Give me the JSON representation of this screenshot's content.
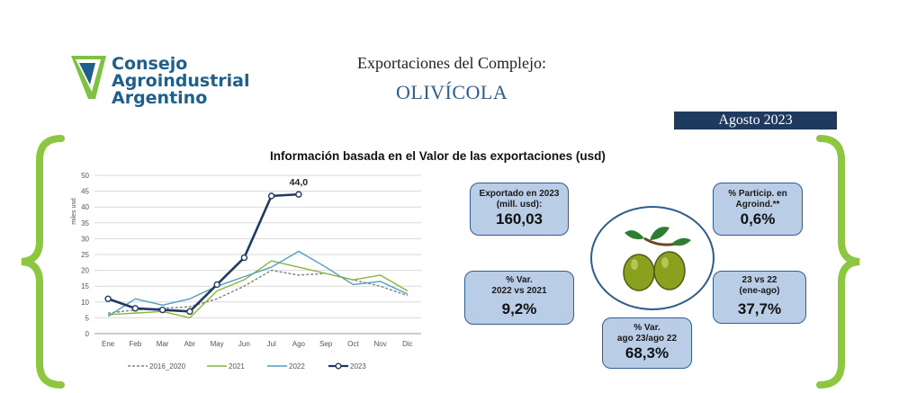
{
  "logo": {
    "line1": "Consejo",
    "line2": "Agroindustrial",
    "line3": "Argentino"
  },
  "header": {
    "title": "Exportaciones del Complejo:",
    "subtitle": "OLIVÍCOLA",
    "date": "Agosto 2023"
  },
  "kpis": {
    "exported": {
      "label_l1": "Exportado en 2023",
      "label_l2": "(mill. usd):",
      "value": "160,03"
    },
    "particip": {
      "label_l1": "% Particip. en",
      "label_l2": "Agroind.**",
      "value": "0,6%"
    },
    "var_2022": {
      "label_l1": "% Var.",
      "label_l2": "2022 vs 2021",
      "value": "9,2%"
    },
    "var_23_22": {
      "label_l1": "23 vs 22",
      "label_l2": "(ene-ago)",
      "value": "37,7%"
    },
    "var_ago": {
      "label_l1": "% Var.",
      "label_l2": "ago 23/ago 22",
      "value": "68,3%"
    }
  },
  "colors": {
    "brand_blue": "#1f5f8b",
    "brand_green": "#7dc242",
    "kpi_fill": "#b9cde6",
    "kpi_border": "#2f5d8c",
    "date_bg": "#1f3a5f"
  },
  "chart_data": {
    "type": "line",
    "title": "Información basada en el Valor de las exportaciones (usd)",
    "ylabel": "miles usd",
    "xlabel": "",
    "ylim": [
      0,
      50
    ],
    "yticks": [
      0,
      5,
      10,
      15,
      20,
      25,
      30,
      35,
      40,
      45,
      50
    ],
    "categories": [
      "Ene",
      "Feb",
      "Mar",
      "Abr",
      "May",
      "Jun",
      "Jul",
      "Ago",
      "Sep",
      "Oct",
      "Nov",
      "Dic"
    ],
    "grid": true,
    "legend": "bottom",
    "annotation": {
      "text": "44,0",
      "category": "Ago",
      "value": 44.0
    },
    "series": [
      {
        "name": "2016_2020",
        "color": "#808080",
        "dash": true,
        "markers": false,
        "values": [
          6.5,
          7.5,
          8,
          8.5,
          11,
          15,
          20,
          18.5,
          19,
          17,
          15,
          12
        ]
      },
      {
        "name": "2021",
        "color": "#8db43c",
        "dash": false,
        "markers": false,
        "values": [
          6,
          6.5,
          7,
          5,
          13.5,
          17,
          23,
          21,
          19,
          17,
          18.5,
          13.5
        ]
      },
      {
        "name": "2022",
        "color": "#4f9ec4",
        "dash": false,
        "markers": false,
        "values": [
          5.5,
          11,
          9,
          11,
          15,
          18,
          21,
          26,
          21,
          15.5,
          16.5,
          12.5
        ]
      },
      {
        "name": "2023",
        "color": "#1f3a5f",
        "dash": false,
        "markers": true,
        "values": [
          11,
          8,
          7.5,
          7,
          15.5,
          24,
          43.5,
          44,
          null,
          null,
          null,
          null
        ]
      }
    ]
  }
}
